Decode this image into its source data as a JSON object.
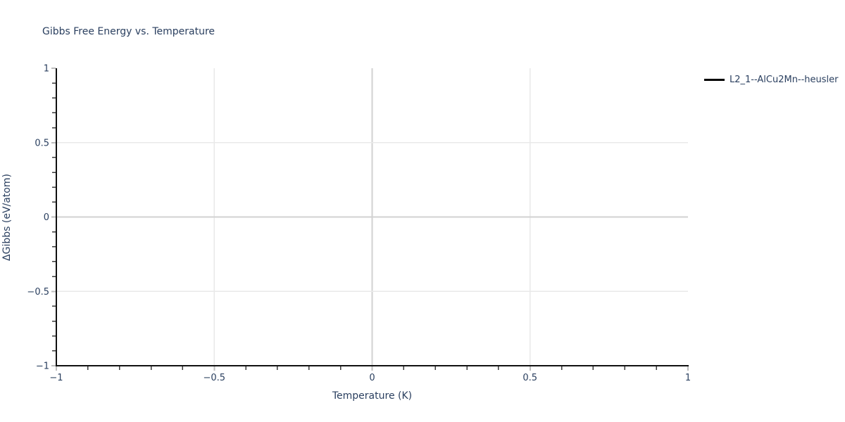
{
  "colors": {
    "text": "#2a3f5f",
    "axis_line": "#101010",
    "grid": "#e9e9e9",
    "zero_grid": "#d2d2d2",
    "major_tick": "#bdbdbd",
    "minor_tick": "#3a3a3a",
    "background": "#ffffff"
  },
  "legend": {
    "items": [
      {
        "label": "L2_1--AlCu2Mn--heusler",
        "line_color": "#000000"
      }
    ]
  },
  "chart_data": {
    "type": "line",
    "title": "Gibbs Free Energy vs. Temperature",
    "xlabel": "Temperature (K)",
    "ylabel": "ΔGibbs (eV/atom)",
    "xlim": [
      -1,
      1
    ],
    "ylim": [
      -1,
      1
    ],
    "x_ticks": [
      -1,
      -0.5,
      0,
      0.5,
      1
    ],
    "x_tick_labels": [
      "−1",
      "−0.5",
      "0",
      "0.5",
      "1"
    ],
    "y_ticks": [
      -1,
      -0.5,
      0,
      0.5,
      1
    ],
    "y_tick_labels": [
      "−1",
      "−0.5",
      "0",
      "0.5",
      "1"
    ],
    "minor_tick_step": 0.1,
    "grid": true,
    "zero_lines_emphasized": true,
    "legend_position": "top-right-outside",
    "series": [
      {
        "name": "L2_1--AlCu2Mn--heusler",
        "color": "#000000",
        "x": [],
        "y": []
      }
    ]
  }
}
